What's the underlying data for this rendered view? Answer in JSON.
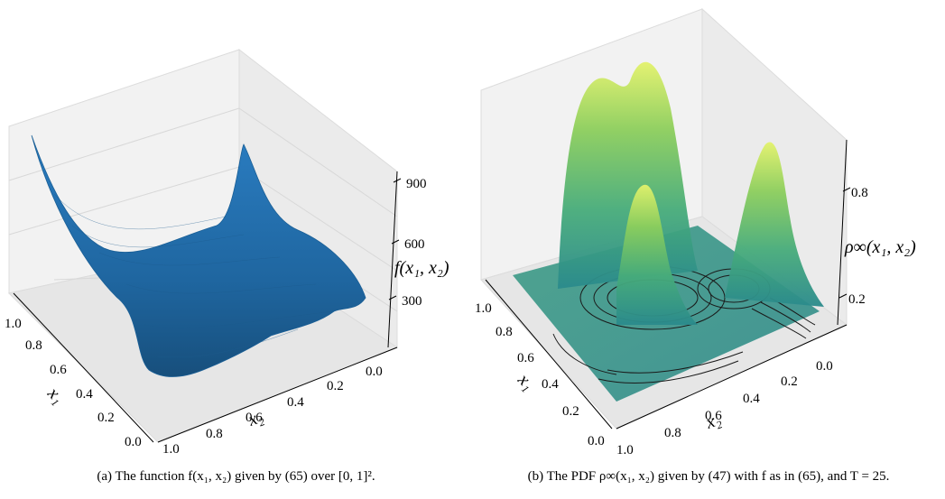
{
  "panels": [
    {
      "id": "a",
      "zlabel": "f(x₁, x₂)",
      "xlabel": "x₁",
      "ylabel": "x₂",
      "x1_ticks": [
        "1.0",
        "0.8",
        "0.6",
        "0.4",
        "0.2",
        "0.0"
      ],
      "x2_ticks": [
        "1.0",
        "0.8",
        "0.6",
        "0.4",
        "0.2",
        "0.0"
      ],
      "z_ticks": [
        "900",
        "600",
        "300"
      ],
      "caption": "(a) The function f(x₁, x₂) given by (65) over [0, 1]².",
      "surface_color": "#2271b5"
    },
    {
      "id": "b",
      "zlabel": "ρ∞(x₁, x₂)",
      "xlabel": "x₁",
      "ylabel": "x₂",
      "x1_ticks": [
        "1.0",
        "0.8",
        "0.6",
        "0.4",
        "0.2",
        "0.0"
      ],
      "x2_ticks": [
        "1.0",
        "0.8",
        "0.6",
        "0.4",
        "0.2",
        "0.0"
      ],
      "z_ticks": [
        "0.8",
        "0.2"
      ],
      "caption": "(b) The PDF ρ∞(x₁, x₂) given by (47) with f as in (65), and T = 25.",
      "colormap": [
        "#2a8a8c",
        "#47ac7a",
        "#8cce5c",
        "#e3f26b"
      ]
    }
  ]
}
